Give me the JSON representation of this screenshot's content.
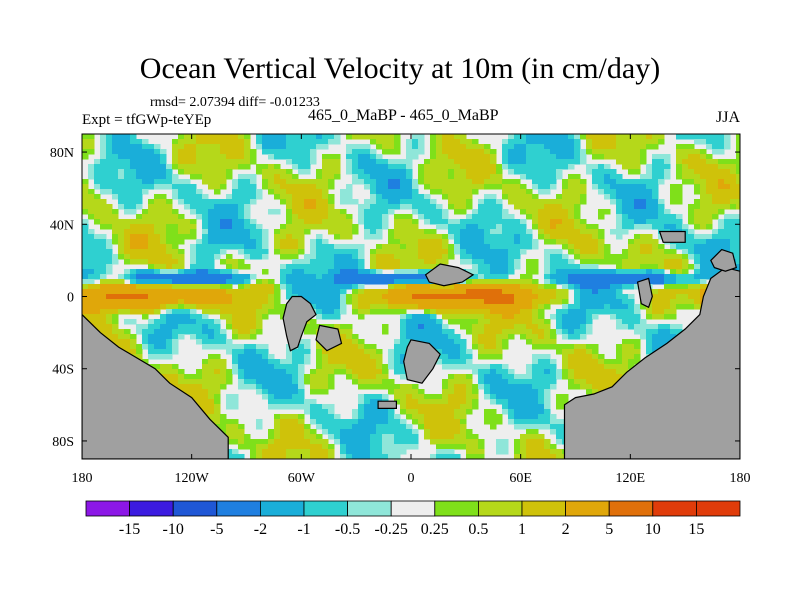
{
  "title": "Ocean Vertical Velocity at 10m (in cm/day)",
  "stats_text": "rmsd= 2.07394 diff= -0.01233",
  "experiment_text": "Expt = tfGWp-teYEp",
  "case_text": "465_0_MaBP - 465_0_MaBP",
  "season_text": "JJA",
  "colors": {
    "land": "#a0a0a0",
    "ocean_near_zero": "#eeeeee",
    "bins": [
      "#8c17e6",
      "#3c1be0",
      "#1f57d6",
      "#1f7fe0",
      "#1aaed9",
      "#2fd0d0",
      "#8fe6d9",
      "#eeeeee",
      "#7fe01a",
      "#b5d81a",
      "#cfc20a",
      "#e0a70a",
      "#e0700a",
      "#e03c0a"
    ]
  },
  "chart_data": {
    "type": "heatmap",
    "title": "Ocean Vertical Velocity at 10m (in cm/day)",
    "units": "cm/day",
    "season": "JJA",
    "rmsd": 2.07394,
    "diff": -0.01233,
    "x_ticks": [
      "180",
      "120W",
      "60W",
      "0",
      "60E",
      "120E",
      "180"
    ],
    "x_tick_values": [
      -180,
      -120,
      -60,
      0,
      60,
      120,
      180
    ],
    "y_ticks": [
      "80N",
      "40N",
      "0",
      "40S",
      "80S"
    ],
    "y_tick_values": [
      80,
      40,
      0,
      -40,
      -80
    ],
    "xlim": [
      -180,
      180
    ],
    "ylim": [
      -90,
      90
    ],
    "colorbar_levels": [
      -15,
      -10,
      -5,
      -2,
      -1,
      -0.5,
      -0.25,
      0.25,
      0.5,
      1,
      2,
      5,
      10,
      15
    ],
    "colorbar_labels": [
      "-15",
      "-10",
      "-5",
      "-2",
      "-1",
      "-0.5",
      "-0.25",
      "0.25",
      "0.5",
      "1",
      "2",
      "5",
      "10",
      "15"
    ],
    "colorbar_colors": [
      "#8c17e6",
      "#3c1be0",
      "#1f57d6",
      "#1f7fe0",
      "#1aaed9",
      "#2fd0d0",
      "#8fe6d9",
      "#eeeeee",
      "#7fe01a",
      "#b5d81a",
      "#cfc20a",
      "#e0a70a",
      "#e0700a",
      "#e03c0a",
      "#e03c0a"
    ],
    "land_masses": [
      {
        "name": "west-continent",
        "points": [
          [
            -180,
            -10
          ],
          [
            -170,
            -20
          ],
          [
            -160,
            -28
          ],
          [
            -150,
            -34
          ],
          [
            -140,
            -40
          ],
          [
            -132,
            -48
          ],
          [
            -120,
            -56
          ],
          [
            -110,
            -68
          ],
          [
            -100,
            -78
          ],
          [
            -100,
            -90
          ],
          [
            -180,
            -90
          ]
        ]
      },
      {
        "name": "mid-continent-north",
        "points": [
          [
            -65,
            0
          ],
          [
            -60,
            0
          ],
          [
            -55,
            -4
          ],
          [
            -52,
            -10
          ],
          [
            -57,
            -14
          ],
          [
            -60,
            -22
          ],
          [
            -62,
            -28
          ],
          [
            -66,
            -30
          ],
          [
            -68,
            -22
          ],
          [
            -70,
            -12
          ],
          [
            -68,
            -4
          ]
        ]
      },
      {
        "name": "mid-continent-south",
        "points": [
          [
            -50,
            -16
          ],
          [
            -40,
            -18
          ],
          [
            -38,
            -26
          ],
          [
            -46,
            -30
          ],
          [
            -52,
            -24
          ]
        ]
      },
      {
        "name": "southern-island",
        "points": [
          [
            0,
            -24
          ],
          [
            10,
            -26
          ],
          [
            16,
            -32
          ],
          [
            12,
            -40
          ],
          [
            6,
            -48
          ],
          [
            -2,
            -46
          ],
          [
            -4,
            -36
          ],
          [
            -2,
            -28
          ]
        ]
      },
      {
        "name": "equatorial-island",
        "points": [
          [
            8,
            12
          ],
          [
            16,
            18
          ],
          [
            26,
            16
          ],
          [
            34,
            12
          ],
          [
            28,
            8
          ],
          [
            18,
            6
          ],
          [
            10,
            8
          ]
        ]
      },
      {
        "name": "small-south-island",
        "points": [
          [
            -18,
            -58
          ],
          [
            -8,
            -58
          ],
          [
            -8,
            -62
          ],
          [
            -18,
            -62
          ]
        ]
      },
      {
        "name": "east-continent",
        "points": [
          [
            180,
            14
          ],
          [
            172,
            16
          ],
          [
            164,
            10
          ],
          [
            160,
            0
          ],
          [
            158,
            -10
          ],
          [
            150,
            -18
          ],
          [
            140,
            -26
          ],
          [
            128,
            -34
          ],
          [
            118,
            -42
          ],
          [
            110,
            -50
          ],
          [
            100,
            -54
          ],
          [
            90,
            -56
          ],
          [
            84,
            -60
          ],
          [
            84,
            -90
          ],
          [
            180,
            -90
          ]
        ]
      },
      {
        "name": "east-high-island",
        "points": [
          [
            164,
            20
          ],
          [
            170,
            26
          ],
          [
            176,
            24
          ],
          [
            178,
            16
          ],
          [
            172,
            14
          ],
          [
            166,
            16
          ]
        ]
      },
      {
        "name": "east-mid-island",
        "points": [
          [
            124,
            8
          ],
          [
            130,
            10
          ],
          [
            132,
            0
          ],
          [
            130,
            -6
          ],
          [
            126,
            -4
          ]
        ]
      },
      {
        "name": "northeast-island",
        "points": [
          [
            136,
            36
          ],
          [
            150,
            36
          ],
          [
            150,
            30
          ],
          [
            138,
            30
          ]
        ]
      }
    ]
  }
}
